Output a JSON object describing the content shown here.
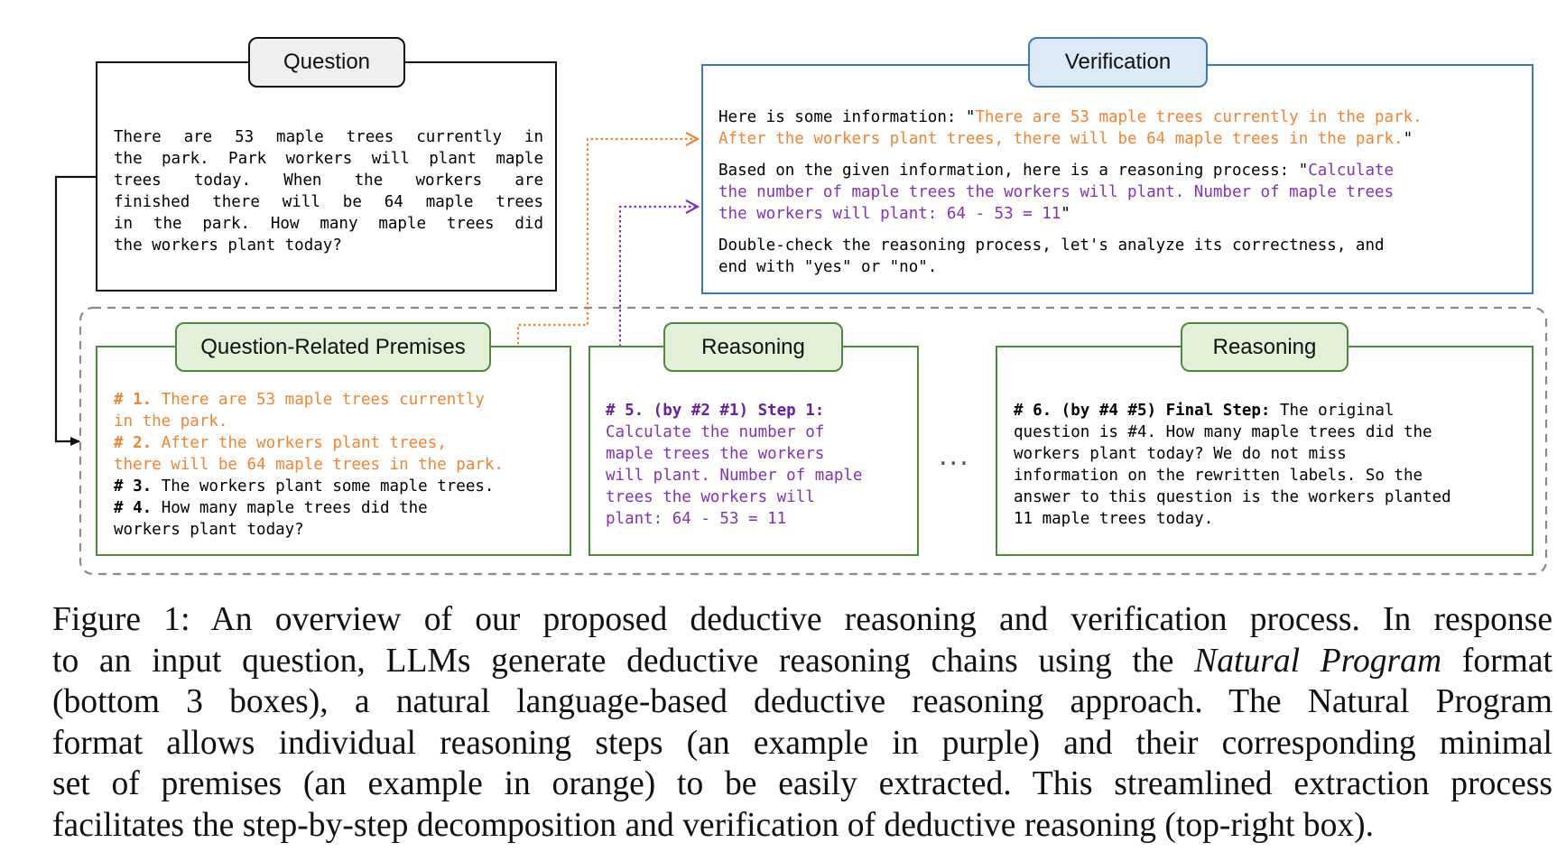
{
  "question": {
    "title": "Question",
    "lines": [
      "There are 53 maple trees currently in",
      "the park. Park workers will plant maple",
      "trees today. When the workers are",
      "finished there will be 64 maple trees",
      "in the park. How many maple trees did",
      "the workers plant today?"
    ]
  },
  "verification": {
    "title": "Verification",
    "info_prefix": "Here is some information: \"",
    "info_orange_1": "There are 53 maple trees currently in the park.",
    "info_orange_2": "After the workers plant trees, there will be 64 maple trees in the park.",
    "info_suffix": "\"",
    "reason_prefix": "Based on the given information, here is a reasoning process: \"",
    "reason_purple_1": "Calculate",
    "reason_purple_2": "the number of maple trees the workers will plant. Number of maple trees",
    "reason_purple_3": "the workers will plant: 64 - 53 = 11",
    "reason_suffix": "\"",
    "instruction_1": "Double-check the reasoning process, let's analyze its correctness, and",
    "instruction_2": "end with \"yes\" or \"no\"."
  },
  "premises": {
    "title": "Question-Related Premises",
    "p1_label": "# 1.",
    "p1_text_a": " There are 53 maple trees currently",
    "p1_text_b": "in the park.",
    "p2_label": "# 2.",
    "p2_text_a": " After the workers plant trees,",
    "p2_text_b": "there will be 64 maple trees in the park.",
    "p3_label": "# 3.",
    "p3_text": " The workers plant some maple trees.",
    "p4_label": "# 4.",
    "p4_text_a": " How many maple trees did the",
    "p4_text_b": "workers plant today?"
  },
  "reasoning_step": {
    "title": "Reasoning",
    "label": "# 5. (by #2 #1) Step 1:",
    "lines": [
      "Calculate the number of",
      "maple trees the workers",
      "will plant. Number of maple",
      "trees the workers will",
      "plant: 64 - 53 = 11"
    ]
  },
  "ellipsis": "...",
  "reasoning_final": {
    "title": "Reasoning",
    "label": "# 6. (by #4 #5) Final Step:",
    "text_a": " The original",
    "lines": [
      "question is #4. How many maple trees did the",
      "workers plant today? We do not miss",
      "information on the rewritten labels. So the",
      "answer to this question is the workers planted",
      "11 maple trees today."
    ]
  },
  "caption": {
    "line1": "Figure 1: An overview of our proposed deductive reasoning and verification process. In response",
    "line2_a": "to an input question, LLMs generate deductive reasoning chains using the ",
    "line2_em": "Natural Program",
    "line2_b": " format",
    "line3": "(bottom 3 boxes), a natural language-based deductive reasoning approach. The Natural Program",
    "line4": "format allows individual reasoning steps (an example in purple) and their corresponding minimal",
    "line5": "set of premises (an example in orange) to be easily extracted. This streamlined extraction process",
    "line6": "facilitates the step-by-step decomposition and verification of deductive reasoning (top-right box)."
  },
  "colors": {
    "orange": "#f2842f",
    "purple": "#8233b5",
    "green_border": "#4f8a3a",
    "green_fill": "#e3f0d8",
    "blue_border": "#3a78bd",
    "blue_fill": "#dce9f6",
    "gray_fill": "#efefef"
  }
}
